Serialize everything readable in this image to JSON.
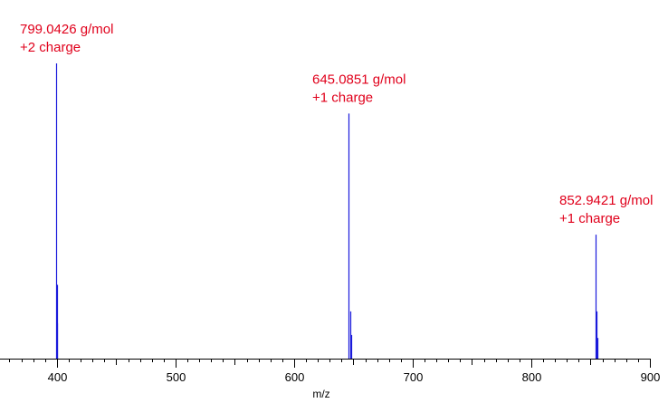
{
  "chart_data": {
    "type": "bar",
    "xlabel": "m/z",
    "xlim": [
      352,
      900
    ],
    "x_major_ticks": [
      400,
      500,
      600,
      700,
      800,
      900
    ],
    "x_tick_labels": [
      "400",
      "500",
      "600",
      "700",
      "800",
      "900"
    ],
    "x_minor_step": 10,
    "ylim": [
      0,
      1.0
    ],
    "grid": false,
    "colors": {
      "peaks": "#1a1adb",
      "annotations": "#e0001b",
      "axis": "#000000"
    },
    "series": [
      {
        "peaks": [
          {
            "mz": 399.3,
            "intensity": 1.0
          },
          {
            "mz": 399.8,
            "intensity": 0.25
          },
          {
            "mz": 400.3,
            "intensity": 0.12
          },
          {
            "mz": 646.1,
            "intensity": 0.83
          },
          {
            "mz": 647.1,
            "intensity": 0.16
          },
          {
            "mz": 648.1,
            "intensity": 0.08
          },
          {
            "mz": 853.9,
            "intensity": 0.42
          },
          {
            "mz": 854.9,
            "intensity": 0.16
          },
          {
            "mz": 855.9,
            "intensity": 0.07
          }
        ]
      }
    ],
    "annotations": [
      {
        "line1": "799.0426 g/mol",
        "line2": "+2 charge",
        "anchor_mz": 399.3,
        "anchor_intensity": 1.0
      },
      {
        "line1": "645.0851 g/mol",
        "line2": "+1 charge",
        "anchor_mz": 646.1,
        "anchor_intensity": 0.83
      },
      {
        "line1": "852.9421 g/mol",
        "line2": "+1 charge",
        "anchor_mz": 853.9,
        "anchor_intensity": 0.42
      }
    ]
  }
}
